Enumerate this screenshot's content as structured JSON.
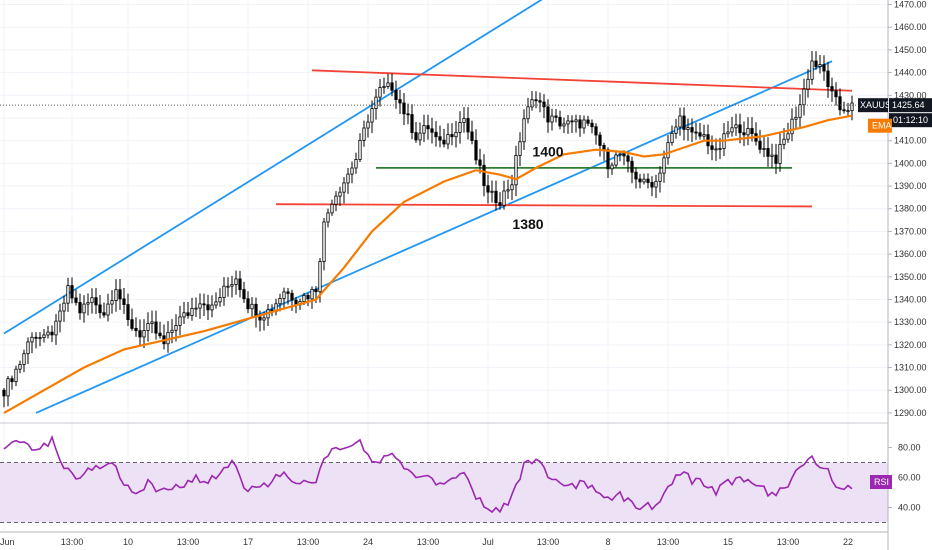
{
  "chart_data": {
    "type": "candlestick",
    "symbol": "XAUUSD",
    "last_price": "1425.64",
    "countdown": "01:12:10",
    "ema_label": "EMA",
    "rsi_label": "RSI",
    "price_axis": {
      "ticks": [
        "1290.00",
        "1300.00",
        "1310.00",
        "1320.00",
        "1330.00",
        "1340.00",
        "1350.00",
        "1360.00",
        "1370.00",
        "1380.00",
        "1390.00",
        "1400.00",
        "1410.00",
        "1420.00",
        "1430.00",
        "1440.00",
        "1450.00",
        "1460.00",
        "1470.00"
      ],
      "range": [
        1286,
        1472
      ]
    },
    "rsi_axis": {
      "ticks": [
        "40.00",
        "60.00",
        "80.00"
      ],
      "range": [
        25,
        95
      ],
      "band": [
        30,
        70
      ]
    },
    "time_axis": {
      "bar_range": [
        0,
        212
      ],
      "labels": [
        {
          "bar": 0,
          "text": "Jun"
        },
        {
          "bar": 17,
          "text": "13:00"
        },
        {
          "bar": 31,
          "text": "10"
        },
        {
          "bar": 46,
          "text": "13:00"
        },
        {
          "bar": 61,
          "text": "17"
        },
        {
          "bar": 76,
          "text": "13:00"
        },
        {
          "bar": 91,
          "text": "24"
        },
        {
          "bar": 106,
          "text": "13:00"
        },
        {
          "bar": 121,
          "text": "Jul"
        },
        {
          "bar": 136,
          "text": "13:00"
        },
        {
          "bar": 151,
          "text": "8"
        },
        {
          "bar": 166,
          "text": "13:00"
        },
        {
          "bar": 181,
          "text": "15"
        },
        {
          "bar": 196,
          "text": "13:00"
        },
        {
          "bar": 211,
          "text": "22"
        }
      ]
    },
    "annotations": [
      {
        "text": "1400",
        "bar": 136,
        "price": 1403
      },
      {
        "text": "1380",
        "bar": 131,
        "price": 1371
      }
    ],
    "trendlines": [
      {
        "color": "#2196f3",
        "points": [
          [
            0,
            1325
          ],
          [
            137,
            1475
          ]
        ]
      },
      {
        "color": "#2196f3",
        "points": [
          [
            8,
            1290
          ],
          [
            207,
            1445
          ]
        ]
      },
      {
        "color": "#f44336",
        "points": [
          [
            77,
            1441
          ],
          [
            212,
            1432
          ]
        ]
      },
      {
        "color": "#f44336",
        "points": [
          [
            68,
            1382
          ],
          [
            202,
            1381
          ]
        ]
      },
      {
        "color": "#2e7d32",
        "points": [
          [
            93,
            1398
          ],
          [
            197,
            1398
          ]
        ]
      }
    ],
    "price_keypoints": [
      [
        0,
        1300
      ],
      [
        4,
        1312
      ],
      [
        7,
        1325
      ],
      [
        10,
        1322
      ],
      [
        13,
        1328
      ],
      [
        16,
        1344
      ],
      [
        19,
        1335
      ],
      [
        22,
        1340
      ],
      [
        25,
        1334
      ],
      [
        28,
        1346
      ],
      [
        31,
        1330
      ],
      [
        34,
        1325
      ],
      [
        37,
        1328
      ],
      [
        40,
        1320
      ],
      [
        43,
        1330
      ],
      [
        46,
        1334
      ],
      [
        49,
        1340
      ],
      [
        52,
        1336
      ],
      [
        55,
        1344
      ],
      [
        58,
        1350
      ],
      [
        61,
        1338
      ],
      [
        64,
        1333
      ],
      [
        67,
        1336
      ],
      [
        70,
        1344
      ],
      [
        73,
        1340
      ],
      [
        76,
        1342
      ],
      [
        78,
        1345
      ],
      [
        80,
        1373
      ],
      [
        82,
        1384
      ],
      [
        85,
        1392
      ],
      [
        88,
        1402
      ],
      [
        91,
        1420
      ],
      [
        94,
        1432
      ],
      [
        97,
        1434
      ],
      [
        100,
        1423
      ],
      [
        103,
        1412
      ],
      [
        106,
        1416
      ],
      [
        109,
        1408
      ],
      [
        112,
        1414
      ],
      [
        115,
        1420
      ],
      [
        118,
        1402
      ],
      [
        121,
        1386
      ],
      [
        124,
        1384
      ],
      [
        127,
        1392
      ],
      [
        130,
        1420
      ],
      [
        133,
        1430
      ],
      [
        136,
        1420
      ],
      [
        139,
        1418
      ],
      [
        142,
        1417
      ],
      [
        145,
        1418
      ],
      [
        148,
        1412
      ],
      [
        151,
        1400
      ],
      [
        154,
        1404
      ],
      [
        157,
        1396
      ],
      [
        160,
        1391
      ],
      [
        163,
        1392
      ],
      [
        166,
        1408
      ],
      [
        169,
        1420
      ],
      [
        172,
        1412
      ],
      [
        175,
        1412
      ],
      [
        178,
        1404
      ],
      [
        181,
        1414
      ],
      [
        184,
        1416
      ],
      [
        187,
        1412
      ],
      [
        190,
        1406
      ],
      [
        193,
        1402
      ],
      [
        196,
        1414
      ],
      [
        199,
        1426
      ],
      [
        202,
        1445
      ],
      [
        205,
        1440
      ],
      [
        207,
        1430
      ],
      [
        209,
        1424
      ],
      [
        212,
        1425
      ]
    ],
    "ema_keypoints": [
      [
        0,
        1290
      ],
      [
        10,
        1300
      ],
      [
        20,
        1310
      ],
      [
        30,
        1318
      ],
      [
        40,
        1322
      ],
      [
        50,
        1326
      ],
      [
        60,
        1331
      ],
      [
        70,
        1336
      ],
      [
        78,
        1340
      ],
      [
        85,
        1354
      ],
      [
        92,
        1370
      ],
      [
        100,
        1383
      ],
      [
        110,
        1392
      ],
      [
        118,
        1397
      ],
      [
        124,
        1395
      ],
      [
        128,
        1393
      ],
      [
        133,
        1398
      ],
      [
        140,
        1404
      ],
      [
        148,
        1406
      ],
      [
        155,
        1405
      ],
      [
        160,
        1403
      ],
      [
        165,
        1404
      ],
      [
        170,
        1407
      ],
      [
        175,
        1410
      ],
      [
        180,
        1410
      ],
      [
        185,
        1411
      ],
      [
        190,
        1412
      ],
      [
        195,
        1414
      ],
      [
        200,
        1416
      ],
      [
        206,
        1419
      ],
      [
        212,
        1421
      ]
    ],
    "rsi_keypoints": [
      [
        0,
        82
      ],
      [
        3,
        87
      ],
      [
        6,
        80
      ],
      [
        9,
        78
      ],
      [
        12,
        84
      ],
      [
        15,
        66
      ],
      [
        18,
        60
      ],
      [
        21,
        67
      ],
      [
        24,
        64
      ],
      [
        27,
        70
      ],
      [
        30,
        54
      ],
      [
        33,
        51
      ],
      [
        36,
        56
      ],
      [
        39,
        50
      ],
      [
        42,
        53
      ],
      [
        45,
        56
      ],
      [
        48,
        60
      ],
      [
        51,
        58
      ],
      [
        54,
        62
      ],
      [
        57,
        70
      ],
      [
        60,
        54
      ],
      [
        63,
        52
      ],
      [
        66,
        56
      ],
      [
        69,
        62
      ],
      [
        72,
        58
      ],
      [
        75,
        56
      ],
      [
        78,
        58
      ],
      [
        80,
        74
      ],
      [
        83,
        80
      ],
      [
        86,
        80
      ],
      [
        89,
        84
      ],
      [
        91,
        74
      ],
      [
        94,
        72
      ],
      [
        97,
        76
      ],
      [
        100,
        68
      ],
      [
        103,
        59
      ],
      [
        106,
        62
      ],
      [
        109,
        55
      ],
      [
        112,
        58
      ],
      [
        115,
        62
      ],
      [
        118,
        48
      ],
      [
        121,
        40
      ],
      [
        124,
        38
      ],
      [
        127,
        46
      ],
      [
        130,
        68
      ],
      [
        133,
        74
      ],
      [
        136,
        60
      ],
      [
        139,
        55
      ],
      [
        142,
        56
      ],
      [
        145,
        55
      ],
      [
        148,
        52
      ],
      [
        151,
        44
      ],
      [
        154,
        48
      ],
      [
        157,
        42
      ],
      [
        160,
        40
      ],
      [
        163,
        42
      ],
      [
        166,
        55
      ],
      [
        169,
        64
      ],
      [
        172,
        58
      ],
      [
        175,
        56
      ],
      [
        178,
        50
      ],
      [
        181,
        58
      ],
      [
        184,
        58
      ],
      [
        187,
        56
      ],
      [
        190,
        52
      ],
      [
        193,
        48
      ],
      [
        196,
        56
      ],
      [
        199,
        66
      ],
      [
        202,
        72
      ],
      [
        205,
        68
      ],
      [
        207,
        58
      ],
      [
        209,
        52
      ],
      [
        212,
        52
      ]
    ],
    "colors": {
      "candle": "#000000",
      "ema": "#f57c00",
      "rsi": "#9c27b0",
      "rsi_band": "#ede2f5",
      "badge_price": "#131722",
      "badge_ema": "#f57c00",
      "badge_rsi": "#9c27b0",
      "grid": "#f0f3fa"
    }
  }
}
